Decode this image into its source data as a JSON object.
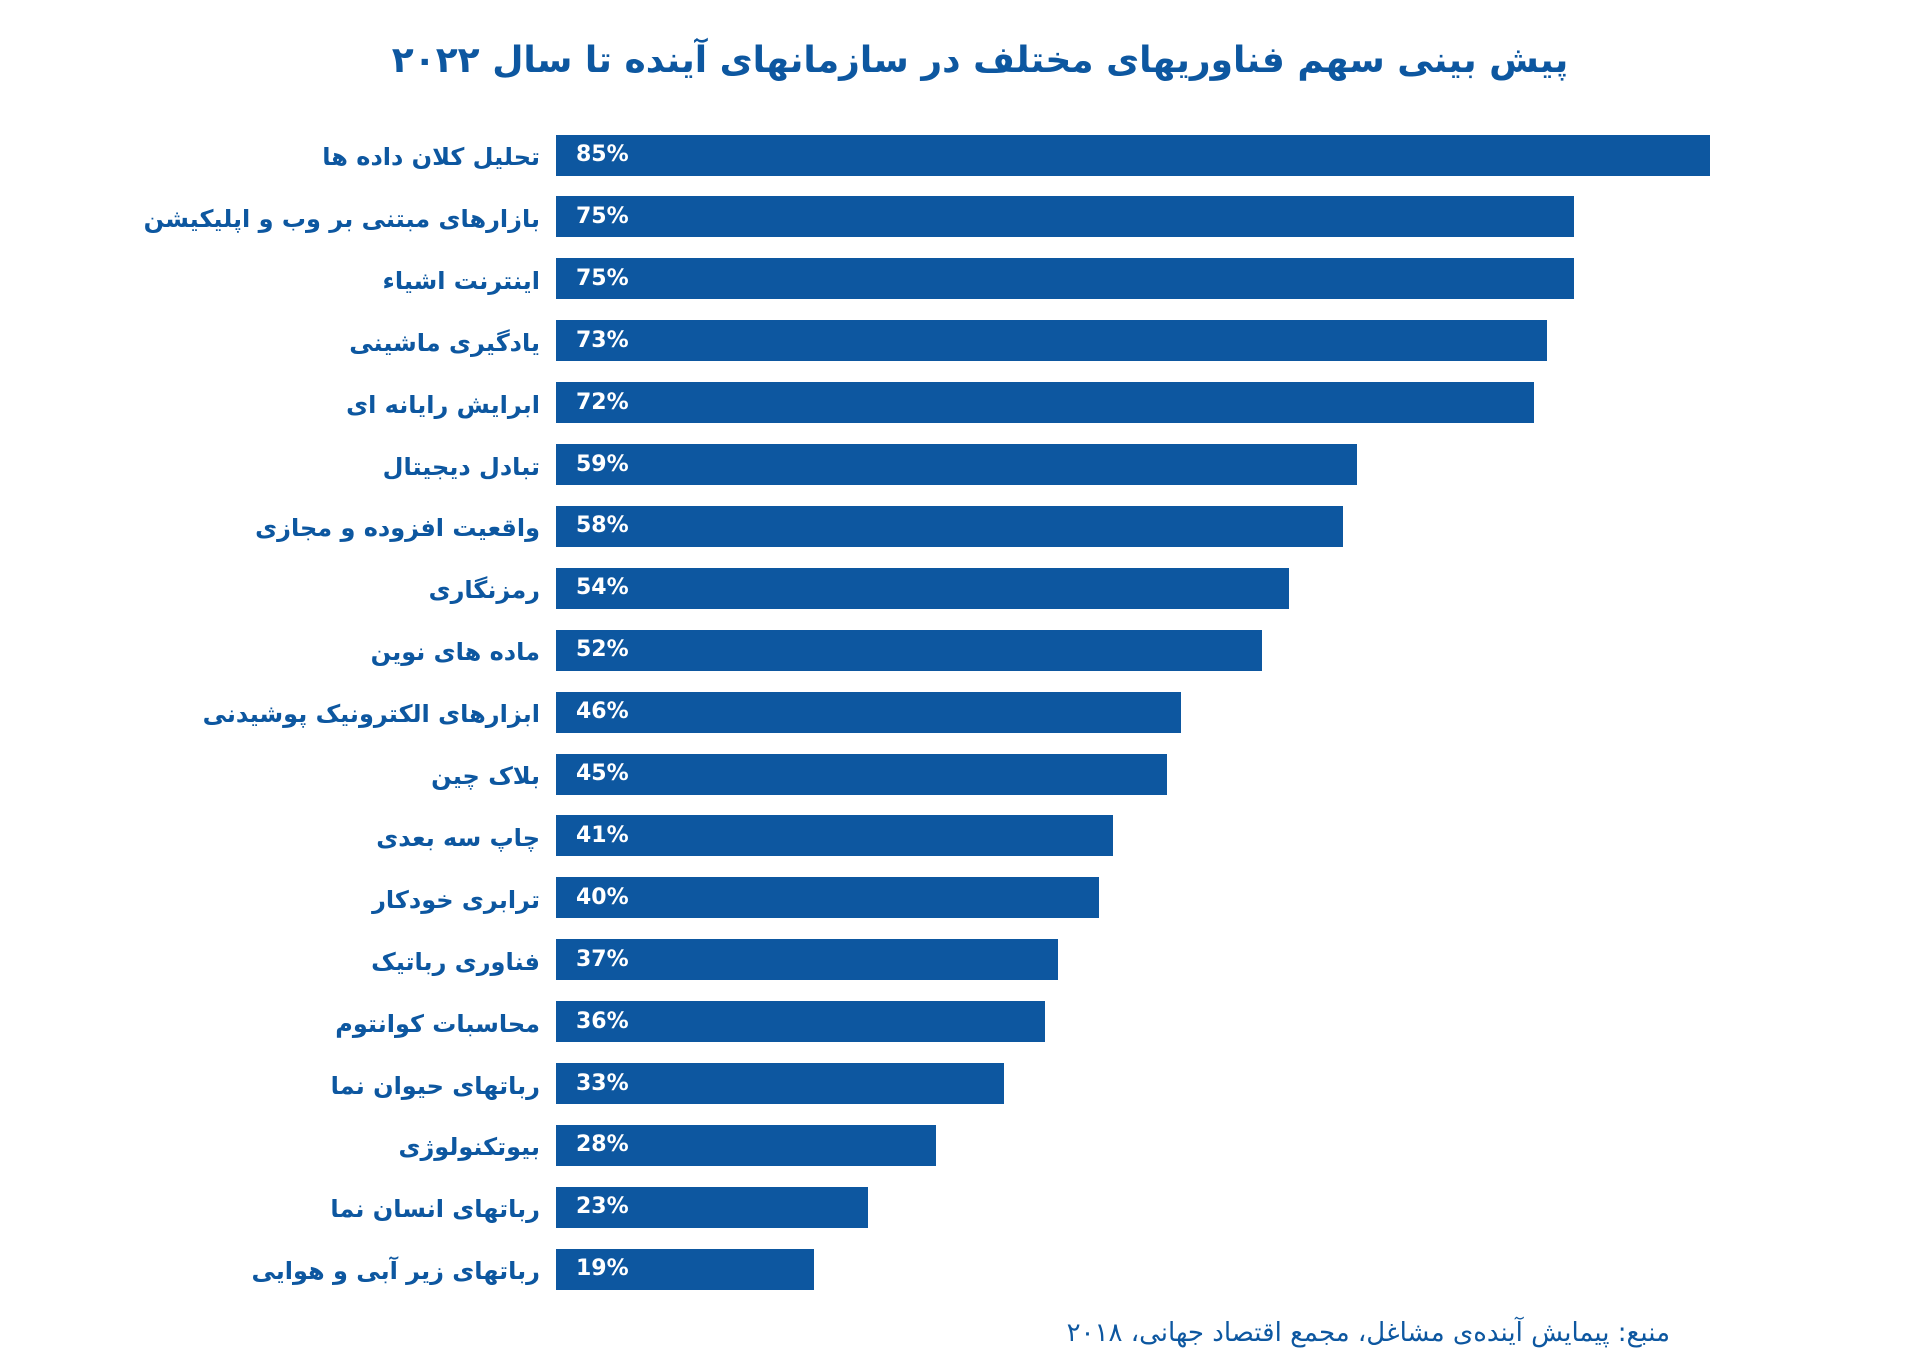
{
  "chart_data": {
    "type": "bar",
    "orientation": "horizontal",
    "title": "پیش بینی سهم فناوریهای مختلف در سازمانهای آینده تا سال ۲۰۲۲",
    "source": "منبع: پیمایش آینده‌ی مشاغل، مجمع اقتصاد جهانی، ۲۰۱۸",
    "color": "#0d57a0",
    "categories": [
      "تحلیل کلان داده ها",
      "بازارهای مبتنی بر وب و اپلیکیشن",
      "اینترنت اشیاء",
      "یادگیری ماشینی",
      "ابرایش رایانه ای",
      "تبادل دیجیتال",
      "واقعیت افزوده و مجازی",
      "رمزنگاری",
      "ماده های نوین",
      "ابزارهای الکترونیک پوشیدنی",
      "بلاک چین",
      "چاپ سه بعدی",
      "ترابری خودکار",
      "فناوری رباتیک",
      "محاسبات کوانتوم",
      "رباتهای حیوان نما",
      "بیوتکنولوژی",
      "رباتهای انسان نما",
      "رباتهای زیر آبی و هوایی"
    ],
    "values": [
      85,
      75,
      75,
      73,
      72,
      59,
      58,
      54,
      52,
      46,
      45,
      41,
      40,
      37,
      36,
      33,
      28,
      23,
      19
    ],
    "value_labels": [
      "85%",
      "75%",
      "75%",
      "73%",
      "72%",
      "59%",
      "58%",
      "54%",
      "52%",
      "46%",
      "45%",
      "41%",
      "40%",
      "37%",
      "36%",
      "33%",
      "28%",
      "23%",
      "19%"
    ]
  }
}
